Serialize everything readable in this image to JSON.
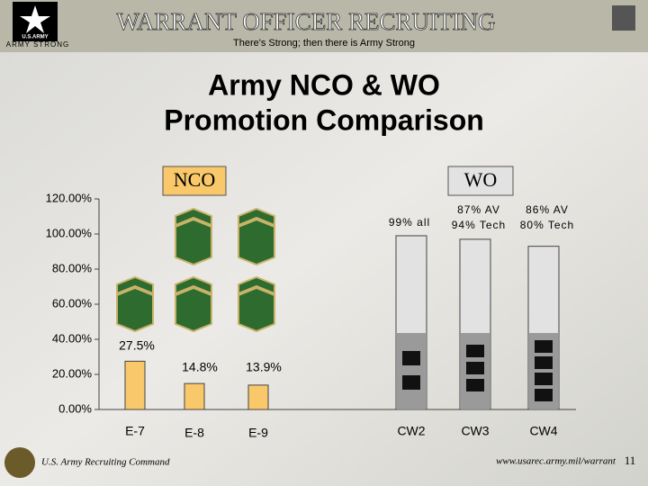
{
  "header": {
    "logo": "U.S.ARMY",
    "tagline": "ARMY STRONG",
    "title": "WARRANT OFFICER RECRUITING",
    "subtitle": "There's Strong; then there is Army Strong"
  },
  "chart_data": {
    "type": "bar",
    "title": [
      "Army NCO & WO",
      "Promotion Comparison"
    ],
    "group_labels": [
      "NCO",
      "WO"
    ],
    "categories": [
      "E-7",
      "E-8",
      "E-9",
      "CW2",
      "CW3",
      "CW4"
    ],
    "values": [
      27.5,
      14.8,
      13.9,
      99,
      97,
      93
    ],
    "value_labels": [
      "27.5%",
      "14.8%",
      "13.9%",
      null,
      null,
      null
    ],
    "colors": [
      "#f9c86a",
      "#f9c86a",
      "#f9c86a",
      "#e2e2e2",
      "#e2e2e2",
      "#e2e2e2"
    ],
    "notes": [
      [
        "99% all"
      ],
      [
        "87% AV",
        "94% Tech"
      ],
      [
        "86% AV",
        "80% Tech"
      ]
    ],
    "ylim": [
      0,
      120
    ],
    "yticks": [
      {
        "value": 0,
        "label": "0.00%"
      },
      {
        "value": 20,
        "label": "20.00%"
      },
      {
        "value": 40,
        "label": "40.00%"
      },
      {
        "value": 60,
        "label": "60.00%"
      },
      {
        "value": 80,
        "label": "80.00%"
      },
      {
        "value": 100,
        "label": "100.00%"
      },
      {
        "value": 120,
        "label": "120.00%"
      }
    ]
  },
  "footer": {
    "left": "U.S. Army Recruiting Command",
    "url": "www.usarec.army.mil/warrant",
    "page": "11"
  }
}
